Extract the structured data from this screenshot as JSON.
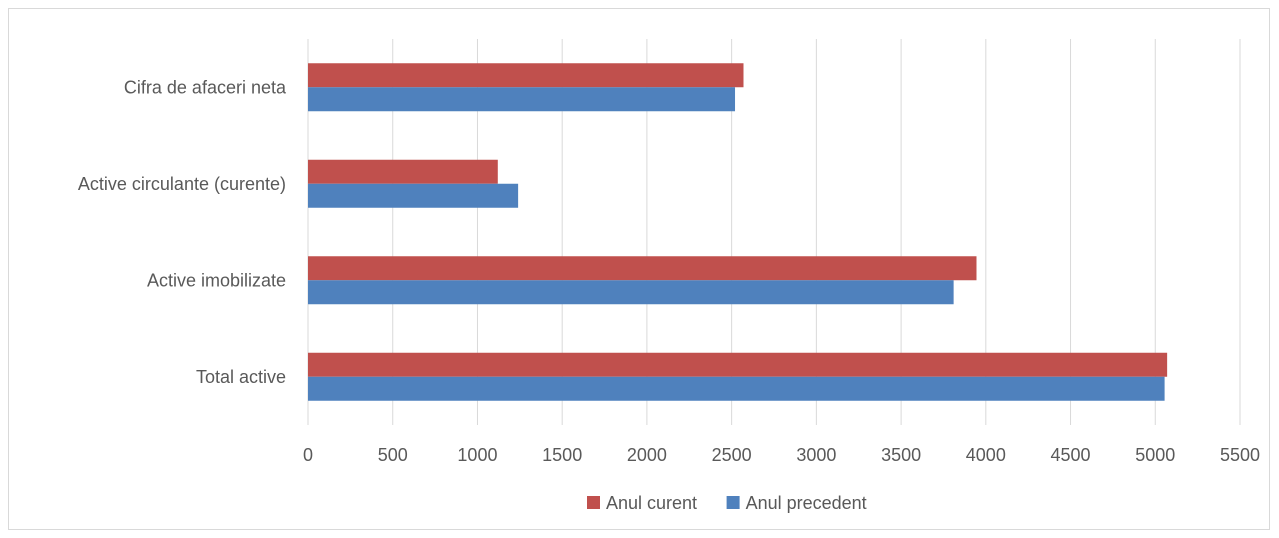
{
  "chart_data": {
    "type": "bar",
    "orientation": "horizontal",
    "categories": [
      "Cifra de afaceri neta",
      "Active circulante (curente)",
      "Active imobilizate",
      "Total active"
    ],
    "series": [
      {
        "name": "Anul curent",
        "color": "#c0504d",
        "values": [
          2570,
          1120,
          3945,
          5070
        ]
      },
      {
        "name": "Anul precedent",
        "color": "#4f81bd",
        "values": [
          2520,
          1240,
          3810,
          5055
        ]
      }
    ],
    "xlim": [
      0,
      5500
    ],
    "xticks": [
      0,
      500,
      1000,
      1500,
      2000,
      2500,
      3000,
      3500,
      4000,
      4500,
      5000,
      5500
    ],
    "grid": true,
    "legend": "bottom-center",
    "title": "",
    "xlabel": "",
    "ylabel": ""
  }
}
